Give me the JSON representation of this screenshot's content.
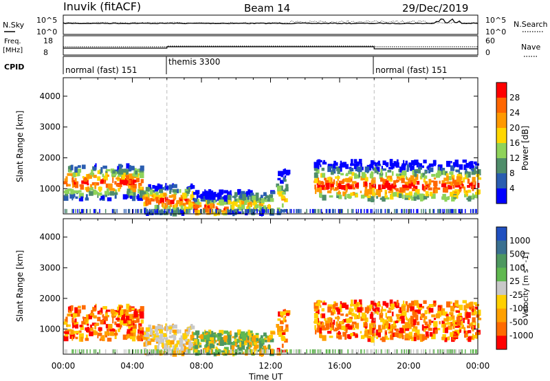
{
  "header": {
    "station": "Inuvik (fitACF)",
    "beam": "Beam 14",
    "date": "29/Dec/2019"
  },
  "panels": {
    "nsky_label": "N.Sky",
    "nsky_ticks": [
      "10^5",
      "10^0"
    ],
    "nsearch_label": "N.Search",
    "nsearch_ticks": [
      "10^5",
      "10^0"
    ],
    "freq_label": "Freq.",
    "freq_unit": "[MHz]",
    "freq_ticks": [
      "18",
      "8"
    ],
    "nave_label": "Nave",
    "nave_ticks": [
      "60",
      "0"
    ],
    "cpid_label": "CPID",
    "cpid_segments": [
      {
        "label": "normal (fast) 151",
        "start_h": 0,
        "end_h": 6
      },
      {
        "label": "themis 3300",
        "start_h": 6,
        "end_h": 18
      },
      {
        "label": "normal (fast) 151",
        "start_h": 18,
        "end_h": 24
      }
    ]
  },
  "colors": {
    "power": [
      "#0000ff",
      "#2a5db0",
      "#4f8d6a",
      "#8fd35a",
      "#ffd700",
      "#ff9900",
      "#ff6600",
      "#ff0000"
    ],
    "velocity_pos": [
      "#2050c0",
      "#3a7090",
      "#4e9860",
      "#60b850"
    ],
    "velocity_neg": [
      "#ffd000",
      "#ffa000",
      "#ff6a00",
      "#ff0000"
    ],
    "ground": "#c8c8c8"
  },
  "chart_data": [
    {
      "type": "heatmap",
      "title": "",
      "quantity": "Power",
      "xlabel": "Time UT",
      "ylabel": "Slant Range [km]",
      "x_ticks": [
        "00:00",
        "04:00",
        "08:00",
        "12:00",
        "16:00",
        "20:00",
        "00:00"
      ],
      "xlim_hours": [
        0,
        24
      ],
      "ylim_km": [
        180,
        4600
      ],
      "y_ticks": [
        1000,
        2000,
        3000,
        4000
      ],
      "colorbar_label": "Power [dB]",
      "colorbar_ticks": [
        "4",
        "8",
        "12",
        "16",
        "20",
        "24",
        "28"
      ],
      "colorbar_range": [
        0,
        32
      ],
      "regions": [
        {
          "t0": 0.0,
          "t1": 4.5,
          "r0": 650,
          "r1": 1750,
          "core": 1200,
          "peak_db": 30
        },
        {
          "t0": 4.5,
          "t1": 7.5,
          "r0": 180,
          "r1": 1100,
          "core": 600,
          "peak_db": 28
        },
        {
          "t0": 7.5,
          "t1": 9.5,
          "r0": 180,
          "r1": 900,
          "core": 350,
          "peak_db": 30
        },
        {
          "t0": 9.5,
          "t1": 12.0,
          "r0": 180,
          "r1": 900,
          "core": 500,
          "peak_db": 20
        },
        {
          "t0": 12.3,
          "t1": 12.9,
          "r0": 200,
          "r1": 1700,
          "core": 700,
          "peak_db": 18
        },
        {
          "t0": 14.5,
          "t1": 24.0,
          "r0": 650,
          "r1": 1900,
          "core": 1100,
          "peak_db": 30
        }
      ]
    },
    {
      "type": "heatmap",
      "title": "",
      "quantity": "Velocity",
      "xlabel": "Time UT",
      "ylabel": "Slant Range [km]",
      "x_ticks": [
        "00:00",
        "04:00",
        "08:00",
        "12:00",
        "16:00",
        "20:00",
        "00:00"
      ],
      "xlim_hours": [
        0,
        24
      ],
      "ylim_km": [
        180,
        4600
      ],
      "y_ticks": [
        1000,
        2000,
        3000,
        4000
      ],
      "colorbar_label": "Velocity [m s^-1]",
      "colorbar_ticks": [
        "1000",
        "500",
        "100",
        "25",
        "-25",
        "-100",
        "-500",
        "-1000"
      ],
      "colorbar_range": [
        -1000,
        1000
      ],
      "regions": [
        {
          "t0": 0.0,
          "t1": 4.5,
          "r0": 650,
          "r1": 1750,
          "core": 1200,
          "sign": "neg"
        },
        {
          "t0": 4.5,
          "t1": 7.5,
          "r0": 180,
          "r1": 1100,
          "core": 600,
          "sign": "ground"
        },
        {
          "t0": 7.5,
          "t1": 9.5,
          "r0": 180,
          "r1": 900,
          "core": 350,
          "sign": "pos"
        },
        {
          "t0": 9.5,
          "t1": 12.0,
          "r0": 180,
          "r1": 900,
          "core": 500,
          "sign": "pos"
        },
        {
          "t0": 12.3,
          "t1": 12.9,
          "r0": 200,
          "r1": 1700,
          "core": 700,
          "sign": "neg"
        },
        {
          "t0": 14.5,
          "t1": 24.0,
          "r0": 650,
          "r1": 1900,
          "core": 1100,
          "sign": "neg"
        }
      ]
    }
  ]
}
